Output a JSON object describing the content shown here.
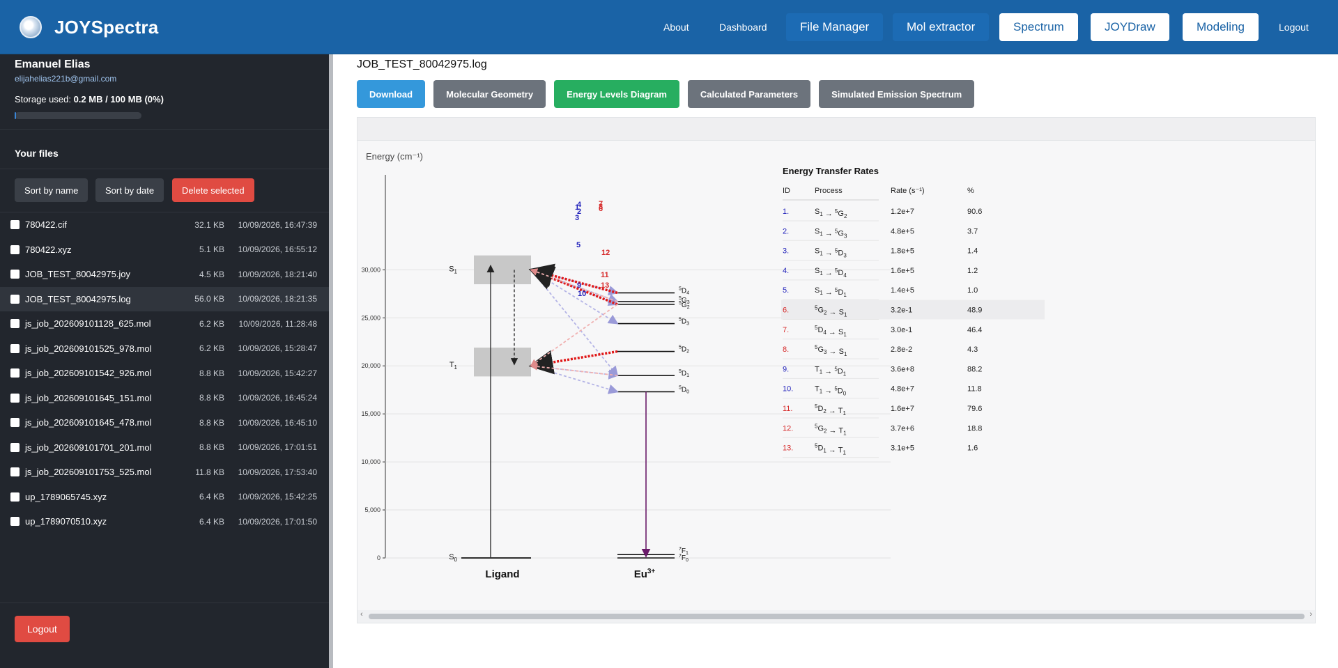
{
  "app": {
    "name": "JOYSpectra",
    "nav": {
      "about": "About",
      "dashboard": "Dashboard",
      "file_manager": "File Manager",
      "mol_extractor": "Mol extractor",
      "spectrum": "Spectrum",
      "joydraw": "JOYDraw",
      "modeling": "Modeling",
      "logout": "Logout"
    }
  },
  "sidebar": {
    "user_name": "Emanuel Elias",
    "user_email": "elijahelias221b@gmail.com",
    "storage_label": "Storage used:",
    "storage_value": "0.2 MB / 100 MB (0%)",
    "storage_fraction": 0.002,
    "files_title": "Your files",
    "sort_name": "Sort by name",
    "sort_date": "Sort by date",
    "delete_selected": "Delete selected",
    "logout": "Logout",
    "files": [
      {
        "name": "780422.cif",
        "size": "32.1 KB",
        "date": "10/09/2026, 16:47:39",
        "selected": false
      },
      {
        "name": "780422.xyz",
        "size": "5.1 KB",
        "date": "10/09/2026, 16:55:12",
        "selected": false
      },
      {
        "name": "JOB_TEST_80042975.joy",
        "size": "4.5 KB",
        "date": "10/09/2026, 18:21:40",
        "selected": false
      },
      {
        "name": "JOB_TEST_80042975.log",
        "size": "56.0 KB",
        "date": "10/09/2026, 18:21:35",
        "selected": true
      },
      {
        "name": "js_job_202609101128_625.mol",
        "size": "6.2 KB",
        "date": "10/09/2026, 11:28:48",
        "selected": false
      },
      {
        "name": "js_job_202609101525_978.mol",
        "size": "6.2 KB",
        "date": "10/09/2026, 15:28:47",
        "selected": false
      },
      {
        "name": "js_job_202609101542_926.mol",
        "size": "8.8 KB",
        "date": "10/09/2026, 15:42:27",
        "selected": false
      },
      {
        "name": "js_job_202609101645_151.mol",
        "size": "8.8 KB",
        "date": "10/09/2026, 16:45:24",
        "selected": false
      },
      {
        "name": "js_job_202609101645_478.mol",
        "size": "8.8 KB",
        "date": "10/09/2026, 16:45:10",
        "selected": false
      },
      {
        "name": "js_job_202609101701_201.mol",
        "size": "8.8 KB",
        "date": "10/09/2026, 17:01:51",
        "selected": false
      },
      {
        "name": "js_job_202609101753_525.mol",
        "size": "11.8 KB",
        "date": "10/09/2026, 17:53:40",
        "selected": false
      },
      {
        "name": "up_1789065745.xyz",
        "size": "6.4 KB",
        "date": "10/09/2026, 15:42:25",
        "selected": false
      },
      {
        "name": "up_1789070510.xyz",
        "size": "6.4 KB",
        "date": "10/09/2026, 17:01:50",
        "selected": false
      }
    ]
  },
  "main": {
    "file_title": "JOB_TEST_80042975.log",
    "tabs": [
      {
        "label": "Download",
        "color": "#3498db"
      },
      {
        "label": "Molecular Geometry",
        "color": "#6c737c"
      },
      {
        "label": "Energy Levels Diagram",
        "color": "#27ae60"
      },
      {
        "label": "Calculated Parameters",
        "color": "#6c737c"
      },
      {
        "label": "Simulated Emission Spectrum",
        "color": "#6c737c"
      }
    ]
  },
  "chart_data": {
    "type": "energy-level-diagram",
    "ylabel": "Energy (cm⁻¹)",
    "ylim": [
      0,
      33000
    ],
    "yticks": [
      0,
      5000,
      10000,
      15000,
      20000,
      25000,
      30000
    ],
    "ytick_labels": [
      "0",
      "5,000",
      "10,000",
      "15,000",
      "20,000",
      "25,000",
      "30,000"
    ],
    "columns": [
      "Ligand",
      "Eu",
      "3+"
    ],
    "ligand_levels": [
      {
        "id": "S0",
        "label": "S",
        "sub": "0",
        "energy": 0
      },
      {
        "id": "S1",
        "label": "S",
        "sub": "1",
        "energy": 30000,
        "band_low": 28500,
        "band_high": 31500
      },
      {
        "id": "T1",
        "label": "T",
        "sub": "1",
        "energy": 20000,
        "band_low": 18900,
        "band_high": 21900
      }
    ],
    "eu_levels": [
      {
        "id": "5D4",
        "sup": "5",
        "base": "D",
        "sub": "4",
        "energy": 27600
      },
      {
        "id": "5G3",
        "sup": "5",
        "base": "G",
        "sub": "3",
        "energy": 26700
      },
      {
        "id": "5G2",
        "sup": "5",
        "base": "G",
        "sub": "2",
        "energy": 26400
      },
      {
        "id": "5D3",
        "sup": "5",
        "base": "D",
        "sub": "3",
        "energy": 24400
      },
      {
        "id": "5D2",
        "sup": "5",
        "base": "D",
        "sub": "2",
        "energy": 21500
      },
      {
        "id": "5D1",
        "sup": "5",
        "base": "D",
        "sub": "1",
        "energy": 19000
      },
      {
        "id": "5D0",
        "sup": "5",
        "base": "D",
        "sub": "0",
        "energy": 17300
      },
      {
        "id": "7F1",
        "sup": "7",
        "base": "F",
        "sub": "1",
        "energy": 350
      },
      {
        "id": "7F0",
        "sup": "7",
        "base": "F",
        "sub": "0",
        "energy": 0
      }
    ],
    "table_title": "Energy Transfer Rates",
    "table_headers": [
      "ID",
      "Process",
      "Rate (s⁻¹)",
      "%"
    ],
    "transfers": [
      {
        "id": 1,
        "from": "S1",
        "to": "5G2",
        "rate": "1.2e+7",
        "pct": "90.6",
        "dir": "forward",
        "color": "#2222bb"
      },
      {
        "id": 2,
        "from": "S1",
        "to": "5G3",
        "rate": "4.8e+5",
        "pct": "3.7",
        "dir": "forward",
        "color": "#2222bb"
      },
      {
        "id": 3,
        "from": "S1",
        "to": "5D3",
        "rate": "1.8e+5",
        "pct": "1.4",
        "dir": "forward",
        "color": "#2222bb"
      },
      {
        "id": 4,
        "from": "S1",
        "to": "5D4",
        "rate": "1.6e+5",
        "pct": "1.2",
        "dir": "forward",
        "color": "#2222bb"
      },
      {
        "id": 5,
        "from": "S1",
        "to": "5D1",
        "rate": "1.4e+5",
        "pct": "1.0",
        "dir": "forward",
        "color": "#2222bb"
      },
      {
        "id": 6,
        "from": "5G2",
        "to": "S1",
        "rate": "3.2e-1",
        "pct": "48.9",
        "dir": "back",
        "color": "#d62a2a"
      },
      {
        "id": 7,
        "from": "5D4",
        "to": "S1",
        "rate": "3.0e-1",
        "pct": "46.4",
        "dir": "back",
        "color": "#d62a2a"
      },
      {
        "id": 8,
        "from": "5G3",
        "to": "S1",
        "rate": "2.8e-2",
        "pct": "4.3",
        "dir": "back",
        "color": "#d62a2a"
      },
      {
        "id": 9,
        "from": "T1",
        "to": "5D1",
        "rate": "3.6e+8",
        "pct": "88.2",
        "dir": "forward",
        "color": "#2222bb"
      },
      {
        "id": 10,
        "from": "T1",
        "to": "5D0",
        "rate": "4.8e+7",
        "pct": "11.8",
        "dir": "forward",
        "color": "#2222bb"
      },
      {
        "id": 11,
        "from": "5D2",
        "to": "T1",
        "rate": "1.6e+7",
        "pct": "79.6",
        "dir": "back",
        "color": "#d62a2a"
      },
      {
        "id": 12,
        "from": "5G2",
        "to": "T1",
        "rate": "3.7e+6",
        "pct": "18.8",
        "dir": "back",
        "color": "#d62a2a"
      },
      {
        "id": 13,
        "from": "5D1",
        "to": "T1",
        "rate": "3.1e+5",
        "pct": "1.6",
        "dir": "back",
        "color": "#d62a2a"
      }
    ],
    "highlighted_row": 6,
    "colors": {
      "forward": "#2222bb",
      "back": "#d62a2a",
      "emission": "#6a1b6a",
      "band": "#c8c8c8"
    }
  }
}
